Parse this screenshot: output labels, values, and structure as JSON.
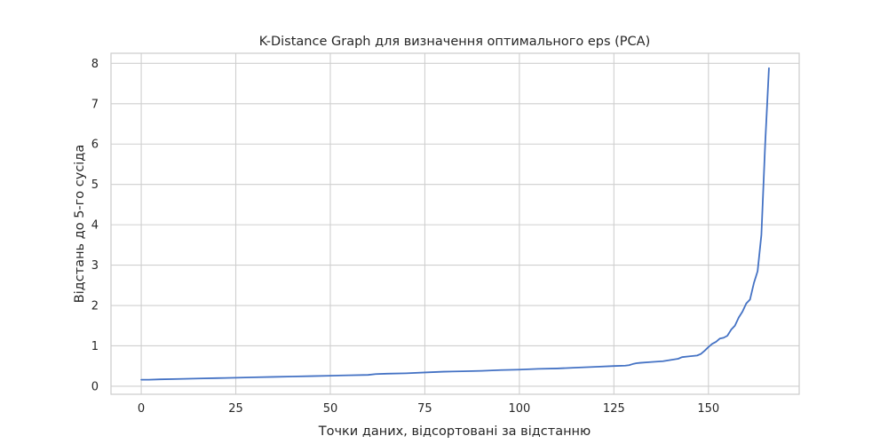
{
  "chart_data": {
    "type": "line",
    "title": "K-Distance Graph для визначення оптимального eps (PCA)",
    "xlabel": "Точки даних, відсортовані за відстанню",
    "ylabel": "Відстань до 5-го сусіда",
    "xlim": [
      -8,
      174
    ],
    "ylim": [
      -0.2,
      8.25
    ],
    "xticks": [
      0,
      25,
      50,
      75,
      100,
      125,
      150
    ],
    "yticks": [
      0,
      1,
      2,
      3,
      4,
      5,
      6,
      7,
      8
    ],
    "grid": true,
    "line_color": "#4472c4",
    "x": [
      0,
      2,
      5,
      10,
      15,
      20,
      25,
      30,
      35,
      40,
      45,
      50,
      55,
      60,
      62,
      65,
      70,
      75,
      80,
      85,
      90,
      95,
      100,
      105,
      110,
      115,
      120,
      125,
      128,
      129,
      130,
      131,
      132,
      135,
      138,
      140,
      142,
      143,
      145,
      147,
      148,
      149,
      150,
      151,
      152,
      153,
      154,
      155,
      156,
      157,
      158,
      159,
      160,
      161,
      162,
      163,
      164,
      165,
      166
    ],
    "y": [
      0.16,
      0.16,
      0.17,
      0.18,
      0.19,
      0.2,
      0.21,
      0.22,
      0.23,
      0.24,
      0.25,
      0.26,
      0.27,
      0.28,
      0.3,
      0.31,
      0.32,
      0.34,
      0.36,
      0.37,
      0.38,
      0.4,
      0.41,
      0.43,
      0.44,
      0.46,
      0.48,
      0.5,
      0.51,
      0.52,
      0.55,
      0.57,
      0.58,
      0.6,
      0.62,
      0.65,
      0.68,
      0.72,
      0.74,
      0.76,
      0.8,
      0.88,
      0.97,
      1.05,
      1.1,
      1.18,
      1.2,
      1.25,
      1.4,
      1.5,
      1.7,
      1.85,
      2.05,
      2.15,
      2.55,
      2.85,
      3.75,
      6.0,
      7.88
    ]
  }
}
